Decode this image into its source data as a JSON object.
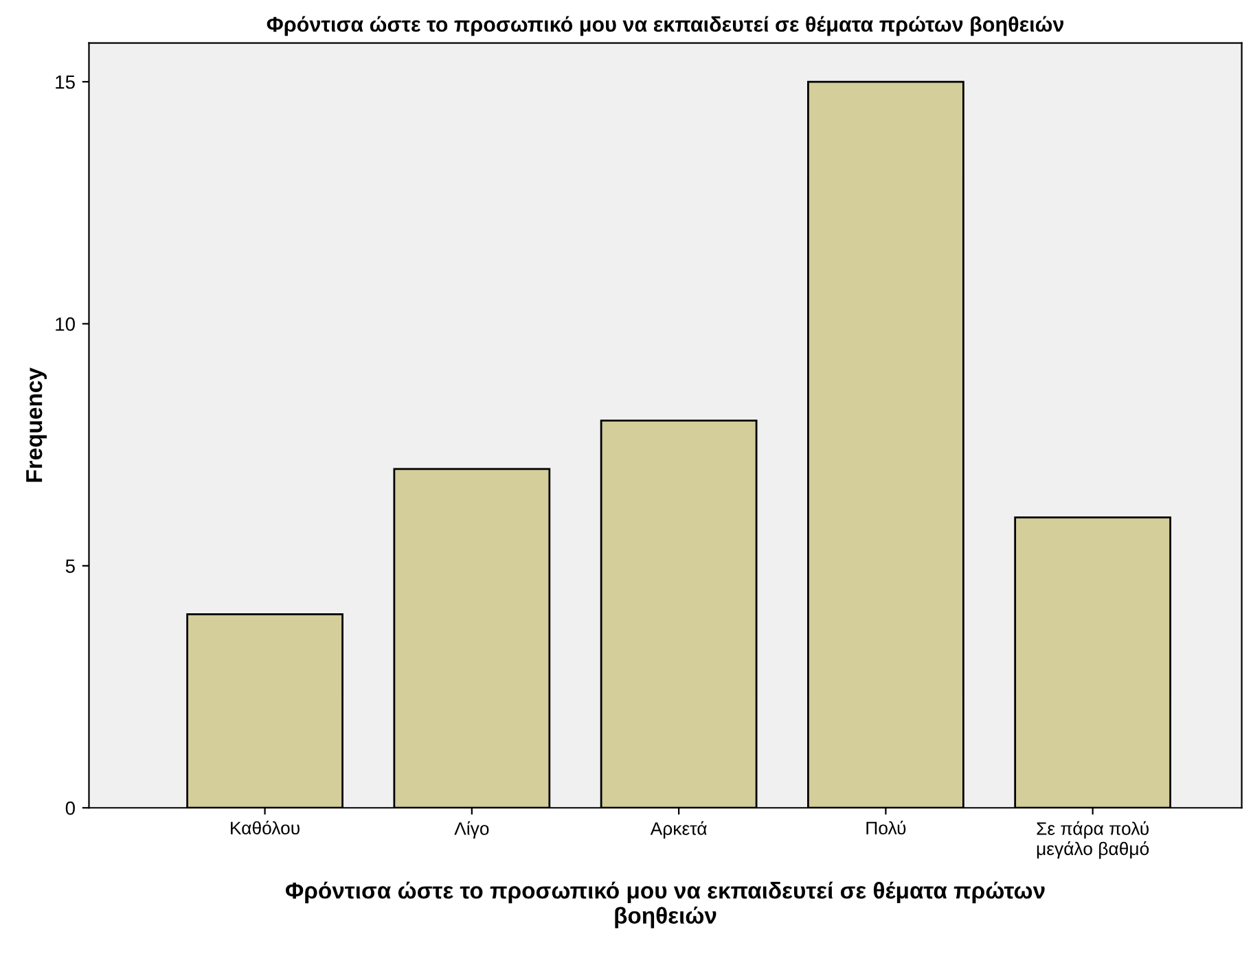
{
  "chart_data": {
    "type": "bar",
    "title": "Φρόντισα ώστε το προσωπικό μου να εκπαιδευτεί σε θέματα πρώτων βοηθειών",
    "xlabel": "Φρόντισα ώστε το προσωπικό μου να εκπαιδευτεί σε θέματα πρώτων\nβοηθειών",
    "ylabel": "Frequency",
    "categories": [
      "Καθόλου",
      "Λίγο",
      "Αρκετά",
      "Πολύ",
      "Σε πάρα πολύ\nμεγάλο βαθμό"
    ],
    "values": [
      4,
      7,
      8,
      15,
      6
    ],
    "color": "#d3ce9a",
    "ylim": [
      0,
      15.8
    ],
    "yticks": [
      0,
      5,
      10,
      15
    ],
    "grid": false,
    "legend": false
  }
}
